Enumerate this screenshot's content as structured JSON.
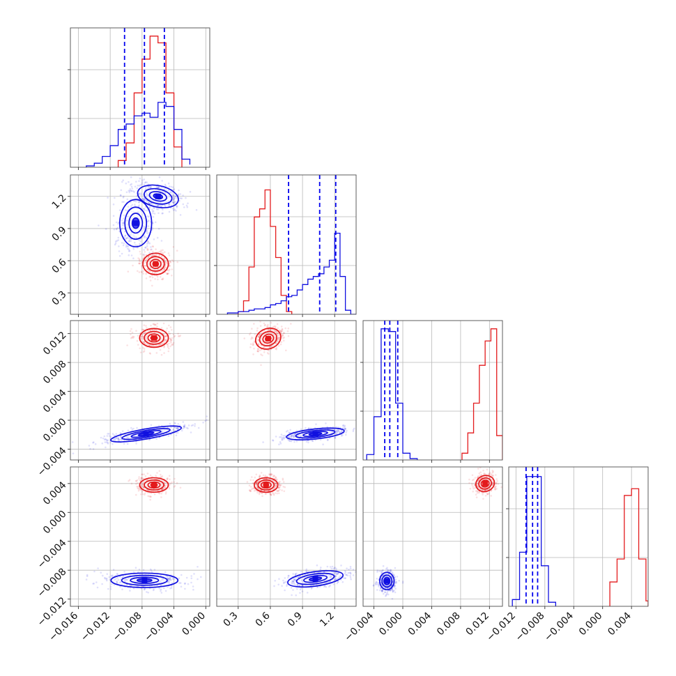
{
  "chart_data": {
    "type": "scatter",
    "kind": "corner-plot",
    "grid": true,
    "parameters": [
      {
        "range": [
          -0.017,
          0.0005
        ],
        "ticks": [
          -0.016,
          -0.012,
          -0.008,
          -0.004,
          0.0
        ],
        "tick_labels": [
          "−0.016",
          "−0.012",
          "−0.008",
          "−0.004",
          "0.000"
        ]
      },
      {
        "range": [
          0.1,
          1.4
        ],
        "ticks": [
          0.3,
          0.6,
          0.9,
          1.2
        ],
        "tick_labels": [
          "0.3",
          "0.6",
          "0.9",
          "1.2"
        ]
      },
      {
        "range": [
          -0.0055,
          0.0138
        ],
        "ticks": [
          -0.004,
          0.0,
          0.004,
          0.008,
          0.012
        ],
        "tick_labels": [
          "−0.004",
          "0.000",
          "0.004",
          "0.008",
          "0.012"
        ]
      },
      {
        "range": [
          -0.013,
          0.0063
        ],
        "ticks": [
          -0.012,
          -0.008,
          -0.004,
          0.0,
          0.004
        ],
        "tick_labels": [
          "−0.012",
          "−0.008",
          "−0.004",
          "0.000",
          "0.004"
        ]
      }
    ],
    "quantile_lines": [
      [
        -0.0102,
        -0.0077,
        -0.0052
      ],
      [
        0.77,
        1.06,
        1.21
      ],
      [
        -0.0025,
        -0.0018,
        -0.0007
      ],
      [
        -0.0106,
        -0.0097,
        -0.009
      ]
    ],
    "series": [
      {
        "color": "#e31a1c",
        "means": [
          -0.0065,
          0.58,
          0.0114,
          0.004
        ],
        "sds": [
          0.00115,
          0.085,
          0.00095,
          0.00075
        ],
        "histograms": [
          {
            "bin_edges": [
              -0.011,
              -0.01,
              -0.009,
              -0.008,
              -0.007,
              -0.006,
              -0.005,
              -0.004,
              -0.003
            ],
            "counts": [
              0.05,
              0.18,
              0.55,
              0.8,
              0.97,
              0.92,
              0.55,
              0.15
            ]
          },
          {
            "bin_edges": [
              0.3,
              0.35,
              0.4,
              0.45,
              0.5,
              0.55,
              0.6,
              0.65,
              0.7,
              0.75,
              0.8
            ],
            "counts": [
              0.02,
              0.1,
              0.35,
              0.72,
              0.78,
              0.92,
              0.65,
              0.42,
              0.14,
              0.02
            ]
          },
          {
            "bin_edges": [
              0.0082,
              0.009,
              0.0098,
              0.0106,
              0.0114,
              0.0122,
              0.013,
              0.0138
            ],
            "counts": [
              0.05,
              0.2,
              0.42,
              0.7,
              0.88,
              0.97,
              0.18
            ]
          },
          {
            "bin_edges": [
              0.001,
              0.002,
              0.003,
              0.004,
              0.005,
              0.006,
              0.0063
            ],
            "counts": [
              0.18,
              0.35,
              0.82,
              0.87,
              0.35,
              0.04
            ]
          }
        ]
      },
      {
        "color": "#1010e0",
        "means": [
          -0.0076,
          1.02,
          -0.0019,
          -0.0098
        ],
        "sds": [
          0.0022,
          0.24,
          0.001,
          0.0008
        ],
        "histograms": [
          {
            "bin_edges": [
              -0.015,
              -0.014,
              -0.013,
              -0.012,
              -0.011,
              -0.01,
              -0.009,
              -0.008,
              -0.007,
              -0.006,
              -0.005,
              -0.004,
              -0.003,
              -0.002
            ],
            "counts": [
              0.01,
              0.03,
              0.08,
              0.16,
              0.28,
              0.32,
              0.38,
              0.4,
              0.37,
              0.48,
              0.45,
              0.28,
              0.06,
              0.02
            ]
          },
          {
            "bin_edges": [
              0.2,
              0.25,
              0.3,
              0.35,
              0.4,
              0.45,
              0.5,
              0.55,
              0.6,
              0.65,
              0.7,
              0.75,
              0.8,
              0.85,
              0.9,
              0.95,
              1.0,
              1.05,
              1.1,
              1.15,
              1.2,
              1.25,
              1.3,
              1.35,
              1.4
            ],
            "counts": [
              0.01,
              0.01,
              0.02,
              0.02,
              0.03,
              0.04,
              0.04,
              0.05,
              0.07,
              0.08,
              0.1,
              0.13,
              0.14,
              0.18,
              0.22,
              0.26,
              0.28,
              0.3,
              0.35,
              0.4,
              0.6,
              0.28,
              0.03,
              0.0
            ]
          },
          {
            "bin_edges": [
              -0.005,
              -0.004,
              -0.003,
              -0.002,
              -0.001,
              0.0,
              0.001,
              0.002
            ],
            "counts": [
              0.04,
              0.32,
              0.97,
              0.95,
              0.42,
              0.05,
              0.01
            ]
          },
          {
            "bin_edges": [
              -0.0125,
              -0.0115,
              -0.0105,
              -0.0095,
              -0.0085,
              -0.0075,
              -0.0065
            ],
            "counts": [
              0.05,
              0.4,
              0.96,
              0.96,
              0.3,
              0.03
            ]
          }
        ]
      }
    ],
    "joint_shapes": {
      "1_0": [
        {
          "series": 0,
          "cx": -0.0063,
          "cy": 0.57,
          "rx": 0.0016,
          "ry": 0.1,
          "rot": 0
        },
        {
          "series": 1,
          "cx": -0.006,
          "cy": 1.2,
          "rx": 0.0026,
          "ry": 0.1,
          "rot": 12
        },
        {
          "series": 1,
          "cx": -0.0088,
          "cy": 0.95,
          "rx": 0.002,
          "ry": 0.22,
          "rot": 0
        }
      ],
      "2_0": [
        {
          "series": 0,
          "cx": -0.0065,
          "cy": 0.0114,
          "rx": 0.0018,
          "ry": 0.0013,
          "rot": 0
        },
        {
          "series": 1,
          "cx": -0.0075,
          "cy": -0.0019,
          "rx": 0.0045,
          "ry": 0.0007,
          "rot": -10
        }
      ],
      "2_1": [
        {
          "series": 0,
          "cx": 0.58,
          "cy": 0.0113,
          "rx": 0.12,
          "ry": 0.0014,
          "rot": -20
        },
        {
          "series": 1,
          "cx": 1.02,
          "cy": -0.0019,
          "rx": 0.27,
          "ry": 0.0007,
          "rot": -6
        }
      ],
      "3_0": [
        {
          "series": 0,
          "cx": -0.0065,
          "cy": 0.0038,
          "rx": 0.0018,
          "ry": 0.001,
          "rot": 0
        },
        {
          "series": 1,
          "cx": -0.0077,
          "cy": -0.0094,
          "rx": 0.0042,
          "ry": 0.001,
          "rot": 0
        }
      ],
      "3_1": [
        {
          "series": 0,
          "cx": 0.56,
          "cy": 0.0038,
          "rx": 0.11,
          "ry": 0.001,
          "rot": 0
        },
        {
          "series": 1,
          "cx": 1.02,
          "cy": -0.0092,
          "rx": 0.26,
          "ry": 0.001,
          "rot": -8
        }
      ],
      "3_2": [
        {
          "series": 0,
          "cx": 0.0114,
          "cy": 0.004,
          "rx": 0.0013,
          "ry": 0.0011,
          "rot": -18
        },
        {
          "series": 1,
          "cx": -0.0022,
          "cy": -0.0095,
          "rx": 0.001,
          "ry": 0.0012,
          "rot": 0
        }
      ]
    }
  }
}
